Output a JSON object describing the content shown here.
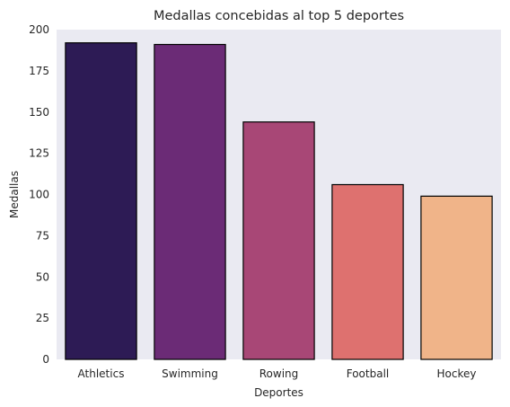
{
  "chart_data": {
    "type": "bar",
    "title": "Medallas concebidas al top 5 deportes",
    "xlabel": "Deportes",
    "ylabel": "Medallas",
    "categories": [
      "Athletics",
      "Swimming",
      "Rowing",
      "Football",
      "Hockey"
    ],
    "values": [
      192,
      191,
      144,
      106,
      99
    ],
    "ylim": [
      0,
      200
    ],
    "yticks": [
      0,
      25,
      50,
      75,
      100,
      125,
      150,
      175,
      200
    ],
    "grid": false,
    "legend": "none",
    "colors": [
      "#2d1b55",
      "#6b2b76",
      "#a84776",
      "#de716f",
      "#f0b489"
    ],
    "plot_background": "#eaeaf2",
    "edge_color": "#000000"
  }
}
